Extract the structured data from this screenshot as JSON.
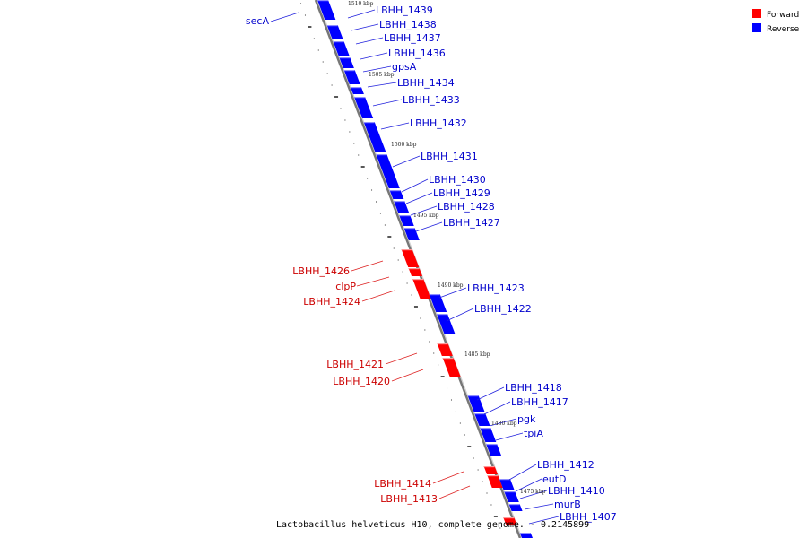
{
  "colors": {
    "forward": "#ff0000",
    "forward_text": "#cc0000",
    "reverse": "#0000ff",
    "reverse_text": "#0000cc",
    "axis": "#777777",
    "leader": "#2222dd",
    "leader_fwd": "#dd2222"
  },
  "legend": {
    "forward_label": "Forward",
    "reverse_label": "Reverse"
  },
  "footer": {
    "title": "Lactobacillus helveticus H10, complete genome. - 0.2145899"
  },
  "kbp_marks": [
    "1510 kbp",
    "1505 kbp",
    "1500 kbp",
    "1495 kbp",
    "1490 kbp",
    "1485 kbp",
    "1480 kbp",
    "1475 kbp"
  ],
  "reverse_genes": [
    "LBHH_1439",
    "LBHH_1438",
    "LBHH_1437",
    "LBHH_1436",
    "gpsA",
    "LBHH_1434",
    "LBHH_1433",
    "LBHH_1432",
    "LBHH_1431",
    "LBHH_1430",
    "LBHH_1429",
    "LBHH_1428",
    "LBHH_1427",
    "LBHH_1423",
    "LBHH_1422",
    "LBHH_1418",
    "LBHH_1417",
    "pgk",
    "tpiA",
    "LBHH_1412",
    "eutD",
    "LBHH_1410",
    "murB",
    "LBHH_1407"
  ],
  "forward_genes": [
    "LBHH_1426",
    "clpP",
    "LBHH_1424",
    "LBHH_1421",
    "LBHH_1420",
    "LBHH_1414",
    "LBHH_1413"
  ],
  "left_reverse_genes": [
    "secA"
  ]
}
